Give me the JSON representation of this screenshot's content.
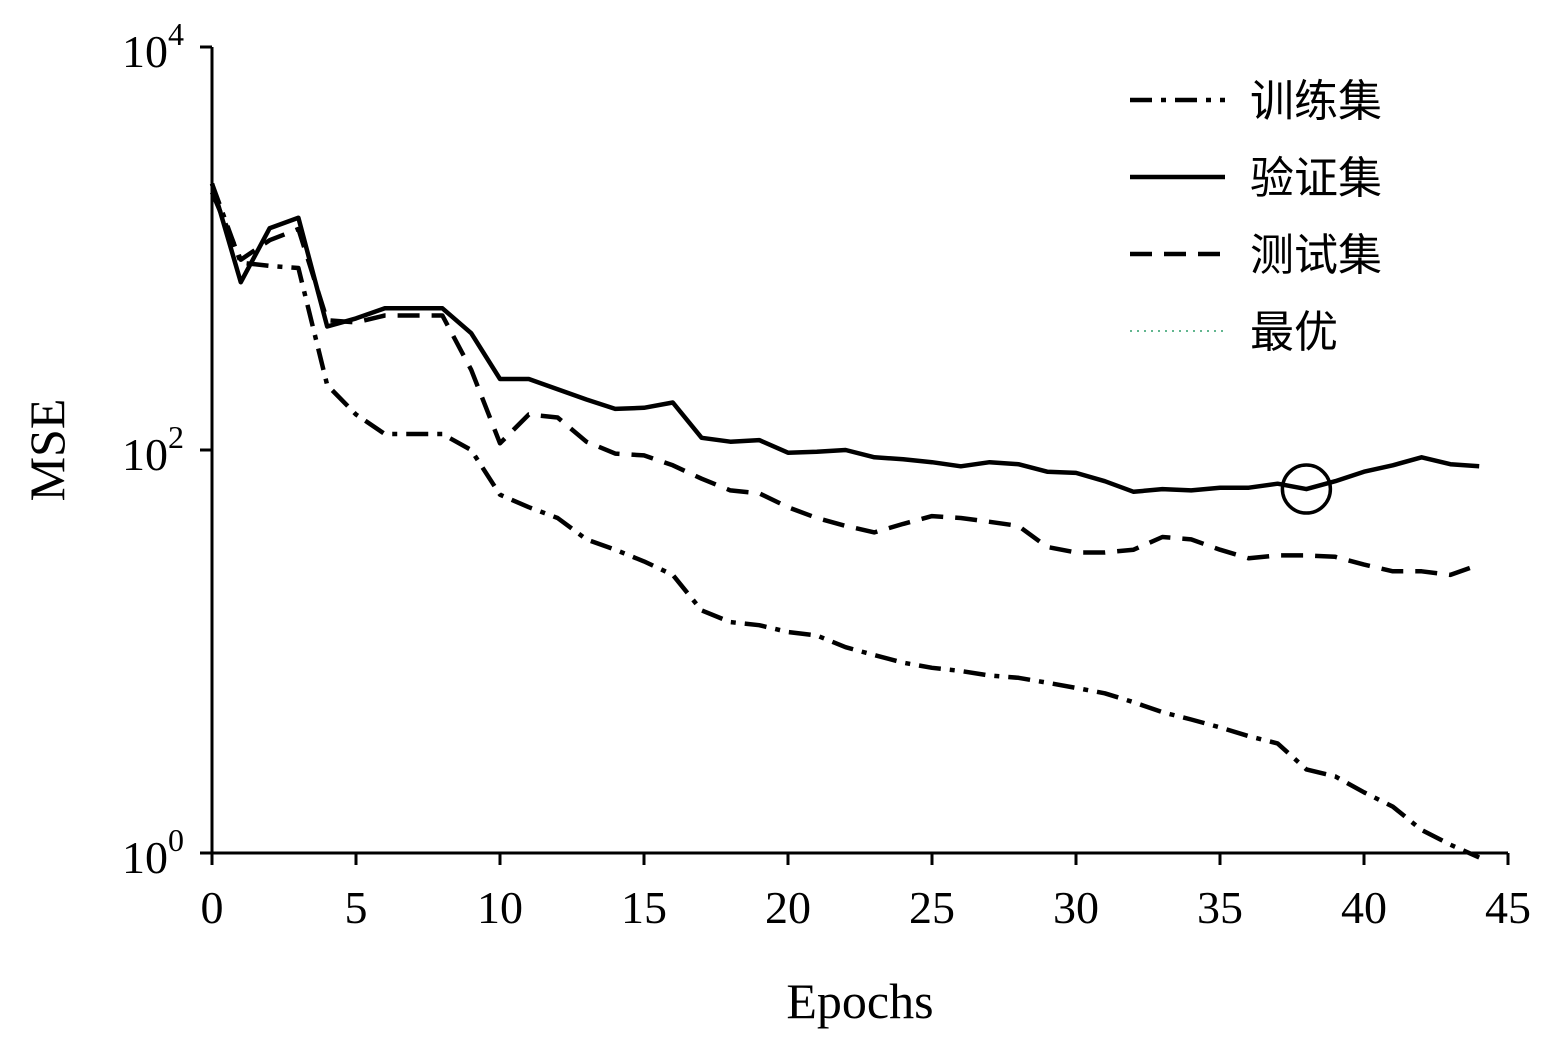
{
  "chart_data": {
    "type": "line",
    "xlabel": "Epochs",
    "ylabel": "MSE",
    "xlim": [
      0,
      45
    ],
    "ylim": [
      1,
      10000
    ],
    "yscale": "log",
    "xticks": [
      0,
      5,
      10,
      15,
      20,
      25,
      30,
      35,
      40,
      45
    ],
    "yticks": [
      {
        "value": 1,
        "base": "10",
        "exp": "0"
      },
      {
        "value": 100,
        "base": "10",
        "exp": "2"
      },
      {
        "value": 10000,
        "base": "10",
        "exp": "4"
      }
    ],
    "grid": false,
    "legend_position": "top-right",
    "x": [
      0,
      1,
      2,
      3,
      4,
      5,
      6,
      7,
      8,
      9,
      10,
      11,
      12,
      13,
      14,
      15,
      16,
      17,
      18,
      19,
      20,
      21,
      22,
      23,
      24,
      25,
      26,
      27,
      28,
      29,
      30,
      31,
      32,
      33,
      34,
      35,
      36,
      37,
      38,
      39,
      40,
      41,
      42,
      43,
      44
    ],
    "series": [
      {
        "name": "训练集",
        "style": "dashdot",
        "values": [
          2100,
          850,
          820,
          800,
          210,
          150,
          120,
          120,
          120,
          100,
          60,
          52,
          46,
          36,
          32,
          28,
          24,
          16,
          14,
          13.5,
          12.5,
          12,
          10.5,
          9.6,
          8.8,
          8.3,
          8.0,
          7.6,
          7.4,
          7.0,
          6.6,
          6.2,
          5.6,
          5.0,
          4.6,
          4.2,
          3.8,
          3.5,
          2.6,
          2.4,
          2.0,
          1.7,
          1.3,
          1.1,
          0.95
        ]
      },
      {
        "name": "验证集",
        "style": "solid",
        "values": [
          2100,
          680,
          1260,
          1420,
          410,
          450,
          505,
          505,
          505,
          380,
          225,
          225,
          200,
          178,
          160,
          162,
          172,
          115,
          110,
          112,
          97,
          98,
          100,
          92,
          90,
          87,
          83,
          87,
          85,
          78,
          77,
          70,
          62,
          64,
          63,
          65,
          65,
          68,
          64,
          70,
          78,
          84,
          92,
          85,
          83
        ]
      },
      {
        "name": "测试集",
        "style": "dashed",
        "values": [
          1900,
          880,
          1100,
          1250,
          440,
          430,
          465,
          465,
          465,
          250,
          108,
          150,
          145,
          110,
          96,
          94,
          84,
          72,
          63,
          61,
          52,
          46,
          42,
          39,
          43,
          47,
          46,
          44,
          42,
          33,
          31,
          31,
          32,
          37,
          36,
          32,
          29,
          30,
          30,
          29.5,
          27,
          25,
          25,
          24,
          27
        ]
      },
      {
        "name": "最优",
        "style": "dotted",
        "color": "#2e9d6a",
        "marker": {
          "x": 38,
          "y": 64
        }
      }
    ]
  }
}
